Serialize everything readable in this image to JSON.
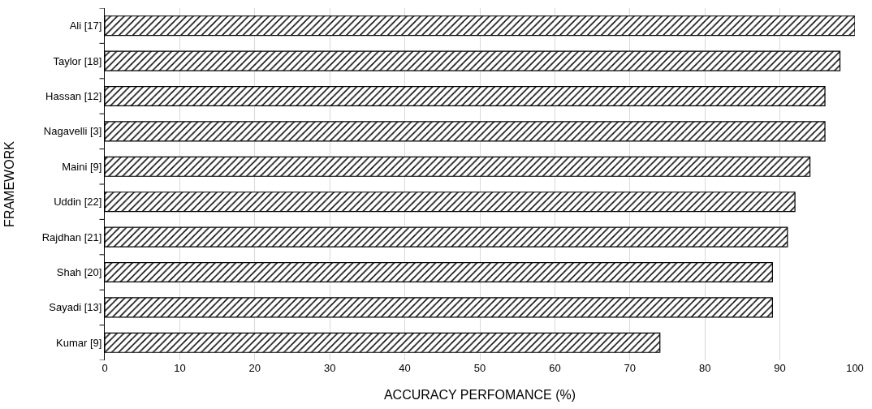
{
  "chart_data": {
    "type": "bar",
    "orientation": "horizontal",
    "xlabel": "ACCURACY PERFOMANCE (%)",
    "ylabel": "FRAMEWORK",
    "categories": [
      "Ali [17]",
      "Taylor [18]",
      "Hassan [12]",
      "Nagavelli [3]",
      "Maini [9]",
      "Uddin [22]",
      "Rajdhan [21]",
      "Shah [20]",
      "Sayadi [13]",
      "Kumar [9]"
    ],
    "values": [
      100,
      98,
      96,
      96,
      94,
      92,
      91,
      89,
      89,
      74
    ],
    "color": "#000000",
    "xlim": [
      0,
      100
    ],
    "xticks": [
      0,
      10,
      20,
      30,
      40,
      50,
      60,
      70,
      80,
      90,
      100
    ],
    "grid": "x",
    "legend": false
  }
}
